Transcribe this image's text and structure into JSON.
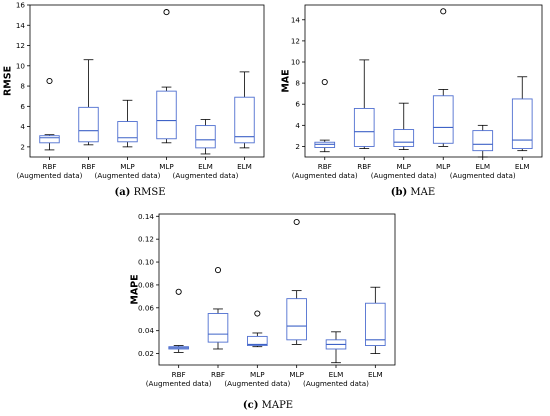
{
  "chart_data": [
    {
      "type": "box",
      "panel": "a",
      "caption_letter": "(a)",
      "caption_text": " RMSE",
      "ylabel": "RMSE",
      "ylim": [
        1,
        16
      ],
      "yticks": [
        2,
        4,
        6,
        8,
        10,
        12,
        14,
        16
      ],
      "ytick_labels": [
        "2",
        "4",
        "6",
        "8",
        "10",
        "12",
        "14",
        "16"
      ],
      "categories": [
        {
          "line1": "RBF",
          "line2": "(Augmented data)"
        },
        {
          "line1": "RBF",
          "line2": ""
        },
        {
          "line1": "MLP",
          "line2": "(Augmented data)"
        },
        {
          "line1": "MLP",
          "line2": ""
        },
        {
          "line1": "ELM",
          "line2": "(Augmented data)"
        },
        {
          "line1": "ELM",
          "line2": ""
        }
      ],
      "boxes": [
        {
          "whislo": 1.7,
          "q1": 2.4,
          "med": 2.9,
          "q3": 3.1,
          "whishi": 3.2,
          "fliers": [
            8.5
          ]
        },
        {
          "whislo": 2.2,
          "q1": 2.5,
          "med": 3.6,
          "q3": 5.9,
          "whishi": 10.6,
          "fliers": []
        },
        {
          "whislo": 2.0,
          "q1": 2.5,
          "med": 2.9,
          "q3": 4.5,
          "whishi": 6.6,
          "fliers": []
        },
        {
          "whislo": 2.4,
          "q1": 2.8,
          "med": 4.6,
          "q3": 7.5,
          "whishi": 7.9,
          "fliers": [
            15.3
          ]
        },
        {
          "whislo": 1.3,
          "q1": 1.9,
          "med": 2.7,
          "q3": 4.1,
          "whishi": 4.7,
          "fliers": []
        },
        {
          "whislo": 1.9,
          "q1": 2.4,
          "med": 3.0,
          "q3": 6.9,
          "whishi": 9.4,
          "fliers": []
        }
      ]
    },
    {
      "type": "box",
      "panel": "b",
      "caption_letter": "(b)",
      "caption_text": " MAE",
      "ylabel": "MAE",
      "ylim": [
        1,
        15.4
      ],
      "yticks": [
        2,
        4,
        6,
        8,
        10,
        12,
        14
      ],
      "ytick_labels": [
        "2",
        "4",
        "6",
        "8",
        "10",
        "12",
        "14"
      ],
      "categories": [
        {
          "line1": "RBF",
          "line2": "(Augmented data)"
        },
        {
          "line1": "RBF",
          "line2": ""
        },
        {
          "line1": "MLP",
          "line2": "(Augmented data)"
        },
        {
          "line1": "MLP",
          "line2": ""
        },
        {
          "line1": "ELM",
          "line2": "(Augmented data)"
        },
        {
          "line1": "ELM",
          "line2": ""
        }
      ],
      "boxes": [
        {
          "whislo": 1.5,
          "q1": 1.9,
          "med": 2.2,
          "q3": 2.4,
          "whishi": 2.6,
          "fliers": [
            8.1
          ]
        },
        {
          "whislo": 1.8,
          "q1": 2.0,
          "med": 3.4,
          "q3": 5.6,
          "whishi": 10.2,
          "fliers": []
        },
        {
          "whislo": 1.7,
          "q1": 2.0,
          "med": 2.4,
          "q3": 3.6,
          "whishi": 6.1,
          "fliers": []
        },
        {
          "whislo": 2.0,
          "q1": 2.3,
          "med": 3.8,
          "q3": 6.8,
          "whishi": 7.4,
          "fliers": [
            14.8
          ]
        },
        {
          "whislo": 1.0,
          "q1": 1.6,
          "med": 2.2,
          "q3": 3.5,
          "whishi": 4.0,
          "fliers": []
        },
        {
          "whislo": 1.6,
          "q1": 1.8,
          "med": 2.6,
          "q3": 6.5,
          "whishi": 8.6,
          "fliers": []
        }
      ]
    },
    {
      "type": "box",
      "panel": "c",
      "caption_letter": "(c)",
      "caption_text": " MAPE",
      "ylabel": "MAPE",
      "ylim": [
        0.01,
        0.142
      ],
      "yticks": [
        0.02,
        0.04,
        0.06,
        0.08,
        0.1,
        0.12,
        0.14
      ],
      "ytick_labels": [
        "0.02",
        "0.04",
        "0.06",
        "0.08",
        "0.10",
        "0.12",
        "0.14"
      ],
      "categories": [
        {
          "line1": "RBF",
          "line2": "(Augmented data)"
        },
        {
          "line1": "RBF",
          "line2": ""
        },
        {
          "line1": "MLP",
          "line2": "(Augmented data)"
        },
        {
          "line1": "MLP",
          "line2": ""
        },
        {
          "line1": "ELM",
          "line2": "(Augmented data)"
        },
        {
          "line1": "ELM",
          "line2": ""
        }
      ],
      "boxes": [
        {
          "whislo": 0.021,
          "q1": 0.024,
          "med": 0.025,
          "q3": 0.026,
          "whishi": 0.027,
          "fliers": [
            0.074
          ]
        },
        {
          "whislo": 0.024,
          "q1": 0.03,
          "med": 0.037,
          "q3": 0.055,
          "whishi": 0.059,
          "fliers": [
            0.093
          ]
        },
        {
          "whislo": 0.026,
          "q1": 0.027,
          "med": 0.028,
          "q3": 0.035,
          "whishi": 0.038,
          "fliers": [
            0.055
          ]
        },
        {
          "whislo": 0.028,
          "q1": 0.032,
          "med": 0.044,
          "q3": 0.068,
          "whishi": 0.075,
          "fliers": [
            0.135
          ]
        },
        {
          "whislo": 0.012,
          "q1": 0.024,
          "med": 0.028,
          "q3": 0.032,
          "whishi": 0.039,
          "fliers": []
        },
        {
          "whislo": 0.02,
          "q1": 0.027,
          "med": 0.032,
          "q3": 0.064,
          "whishi": 0.078,
          "fliers": []
        }
      ]
    }
  ]
}
